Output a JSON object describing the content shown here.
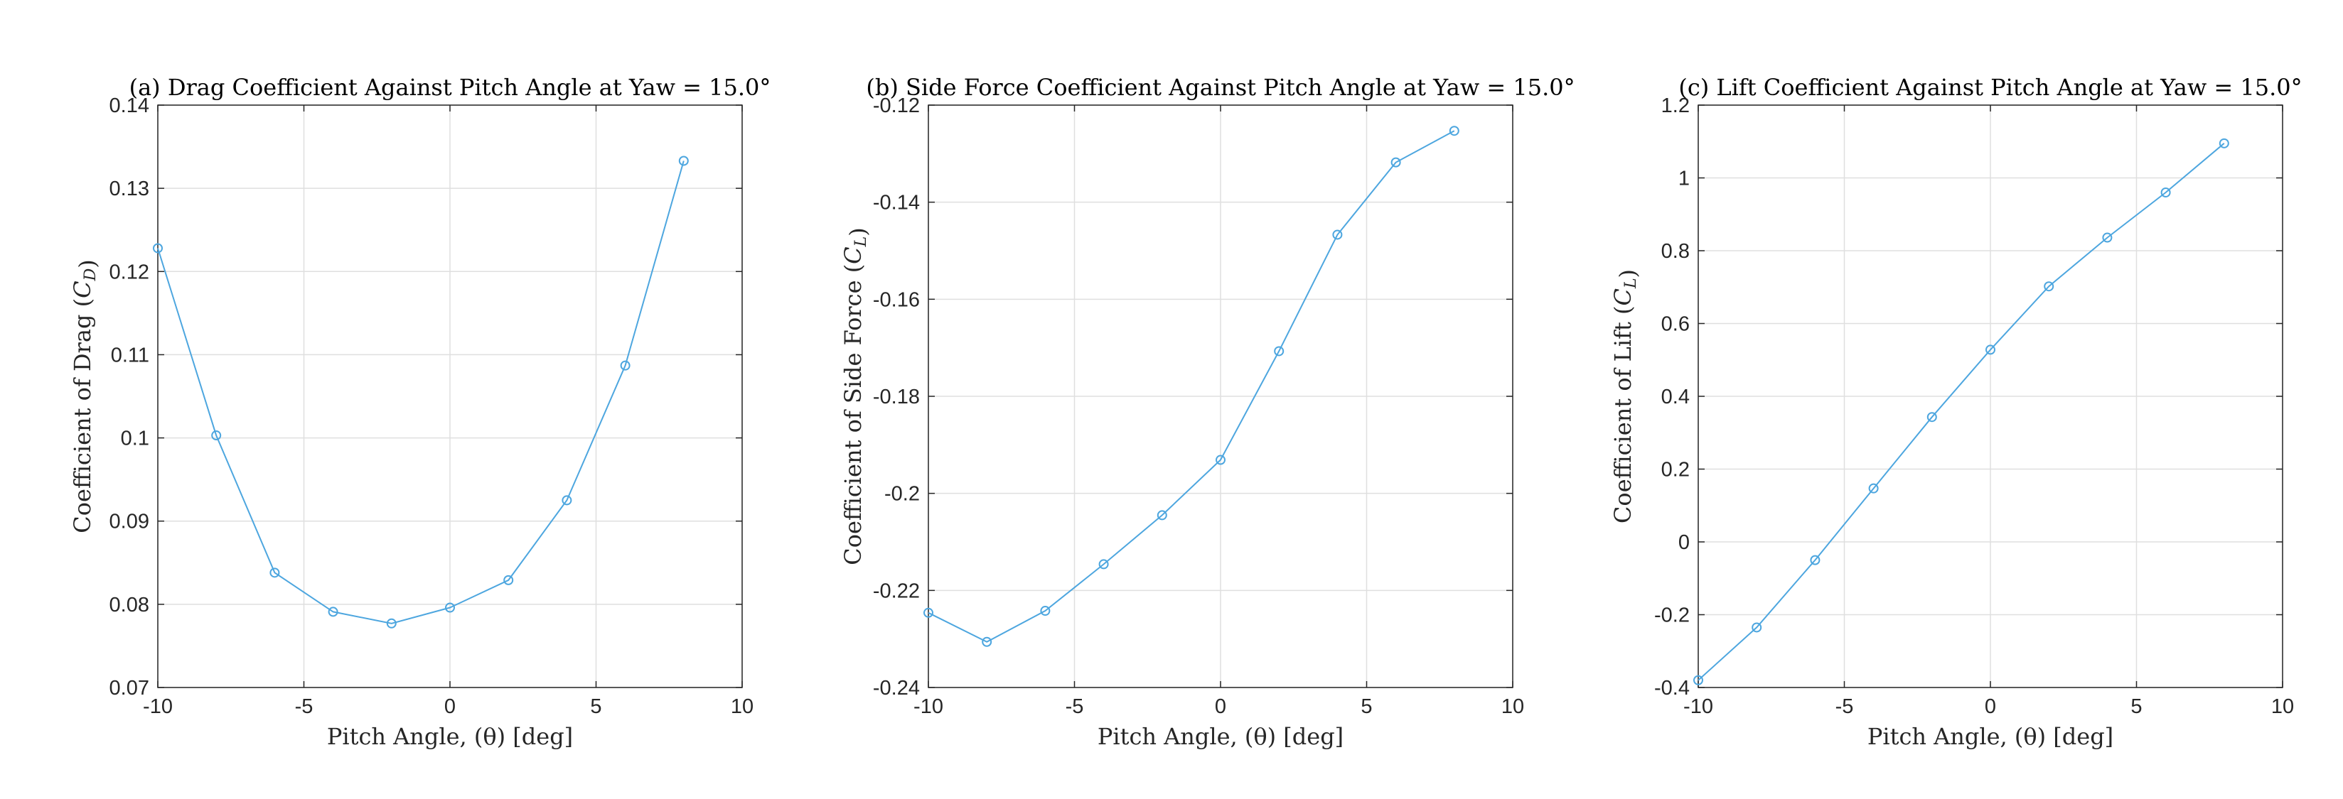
{
  "chart_data": [
    {
      "type": "line",
      "title": "(a) Drag Coefficient Against Pitch Angle at Yaw = 15.0°",
      "xlabel": "Pitch Angle, (θ) [deg]",
      "ylabel": "Coefficient of Drag (C_D)",
      "xlim": [
        -10,
        10
      ],
      "ylim": [
        0.07,
        0.14
      ],
      "xticks": [
        "-10",
        "-5",
        "0",
        "5",
        "10"
      ],
      "yticks": [
        "0.07",
        "0.08",
        "0.09",
        "0.1",
        "0.11",
        "0.12",
        "0.13",
        "0.14"
      ],
      "grid": true,
      "marker": "circle",
      "x": [
        -10,
        -8,
        -6,
        -4,
        -2,
        0,
        2,
        4,
        6,
        8
      ],
      "series": [
        {
          "values": [
            0.1228,
            0.1003,
            0.0838,
            0.0791,
            0.0777,
            0.0796,
            0.0829,
            0.0925,
            0.1087,
            0.1333
          ]
        }
      ]
    },
    {
      "type": "line",
      "title": "(b) Side Force Coefficient Against Pitch Angle at Yaw = 15.0°",
      "xlabel": "Pitch Angle, (θ) [deg]",
      "ylabel": "Coefficient of Side Force (C_L)",
      "xlim": [
        -10,
        10
      ],
      "ylim": [
        -0.24,
        -0.12
      ],
      "xticks": [
        "-10",
        "-5",
        "0",
        "5",
        "10"
      ],
      "yticks": [
        "-0.24",
        "-0.22",
        "-0.2",
        "-0.18",
        "-0.16",
        "-0.14",
        "-0.12"
      ],
      "grid": true,
      "marker": "circle",
      "x": [
        -10,
        -8,
        -6,
        -4,
        -2,
        0,
        2,
        4,
        6,
        8
      ],
      "series": [
        {
          "values": [
            -0.2246,
            -0.2306,
            -0.2242,
            -0.2146,
            -0.2045,
            -0.1931,
            -0.1707,
            -0.1467,
            -0.1318,
            -0.1253
          ]
        }
      ]
    },
    {
      "type": "line",
      "title": "(c) Lift Coefficient Against Pitch Angle at Yaw = 15.0°",
      "xlabel": "Pitch Angle, (θ) [deg]",
      "ylabel": "Coefficient of Lift (C_L)",
      "xlim": [
        -10,
        10
      ],
      "ylim": [
        -0.4,
        1.2
      ],
      "xticks": [
        "-10",
        "-5",
        "0",
        "5",
        "10"
      ],
      "yticks": [
        "-0.4",
        "-0.2",
        "0",
        "0.2",
        "0.4",
        "0.6",
        "0.8",
        "1",
        "1.2"
      ],
      "grid": true,
      "marker": "circle",
      "x": [
        -10,
        -8,
        -6,
        -4,
        -2,
        0,
        2,
        4,
        6,
        8
      ],
      "series": [
        {
          "values": [
            -0.38,
            -0.235,
            -0.05,
            0.147,
            0.343,
            0.528,
            0.702,
            0.836,
            0.96,
            1.095
          ]
        }
      ]
    }
  ],
  "colors": {
    "series": "#4da6df",
    "axis": "#262626",
    "grid": "#dfdfdf"
  }
}
